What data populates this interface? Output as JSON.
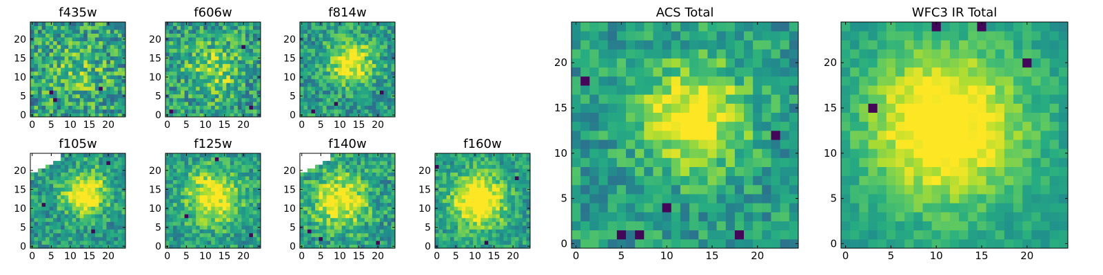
{
  "chart_data": [
    {
      "type": "heatmap",
      "title": "f435w",
      "xlim": [
        0,
        24
      ],
      "ylim": [
        0,
        24
      ],
      "xticks": [
        0,
        5,
        10,
        15,
        20
      ],
      "yticks": [
        0,
        5,
        10,
        15,
        20
      ],
      "grid": false,
      "colormap": "viridis",
      "peak": [
        12,
        11
      ],
      "spread": 6,
      "strength": 0.18,
      "noise": 0.55,
      "masked_corner": "none",
      "dark_spots": [
        [
          5,
          6
        ],
        [
          6,
          4
        ],
        [
          18,
          7
        ]
      ]
    },
    {
      "type": "heatmap",
      "title": "f606w",
      "xlim": [
        0,
        24
      ],
      "ylim": [
        0,
        24
      ],
      "xticks": [
        0,
        5,
        10,
        15,
        20
      ],
      "yticks": [
        0,
        5,
        10,
        15,
        20
      ],
      "grid": false,
      "colormap": "viridis",
      "peak": [
        12,
        12
      ],
      "spread": 5,
      "strength": 0.3,
      "noise": 0.5,
      "masked_corner": "none",
      "dark_spots": [
        [
          1,
          1
        ],
        [
          22,
          2
        ],
        [
          20,
          18
        ]
      ]
    },
    {
      "type": "heatmap",
      "title": "f814w",
      "xlim": [
        0,
        24
      ],
      "ylim": [
        0,
        24
      ],
      "xticks": [
        0,
        5,
        10,
        15,
        20
      ],
      "yticks": [
        0,
        5,
        10,
        15,
        20
      ],
      "grid": false,
      "colormap": "viridis",
      "peak": [
        13,
        14
      ],
      "spread": 4,
      "strength": 0.5,
      "noise": 0.42,
      "masked_corner": "none",
      "dark_spots": [
        [
          3,
          1
        ],
        [
          9,
          3
        ],
        [
          21,
          6
        ]
      ]
    },
    {
      "type": "heatmap",
      "title": "f105w",
      "xlim": [
        0,
        24
      ],
      "ylim": [
        0,
        24
      ],
      "xticks": [
        0,
        5,
        10,
        15,
        20
      ],
      "yticks": [
        0,
        5,
        10,
        15,
        20
      ],
      "grid": false,
      "colormap": "viridis",
      "peak": [
        14,
        14
      ],
      "spread": 4,
      "strength": 0.55,
      "noise": 0.4,
      "masked_corner": "top-left",
      "dark_spots": [
        [
          3,
          11
        ],
        [
          16,
          4
        ],
        [
          20,
          22
        ]
      ]
    },
    {
      "type": "heatmap",
      "title": "f125w",
      "xlim": [
        0,
        24
      ],
      "ylim": [
        0,
        24
      ],
      "xticks": [
        0,
        5,
        10,
        15,
        20
      ],
      "yticks": [
        0,
        5,
        10,
        15,
        20
      ],
      "grid": false,
      "colormap": "viridis",
      "peak": [
        12,
        13
      ],
      "spread": 5,
      "strength": 0.5,
      "noise": 0.38,
      "masked_corner": "none",
      "dark_spots": [
        [
          13,
          23
        ],
        [
          5,
          8
        ],
        [
          22,
          3
        ]
      ]
    },
    {
      "type": "heatmap",
      "title": "f140w",
      "xlim": [
        0,
        24
      ],
      "ylim": [
        0,
        24
      ],
      "xticks": [
        0,
        5,
        10,
        15,
        20
      ],
      "yticks": [
        0,
        5,
        10,
        15,
        20
      ],
      "grid": false,
      "colormap": "viridis",
      "peak": [
        10,
        12
      ],
      "spread": 5,
      "strength": 0.5,
      "noise": 0.42,
      "masked_corner": "top-left",
      "dark_spots": [
        [
          2,
          4
        ],
        [
          5,
          2
        ],
        [
          20,
          1
        ]
      ]
    },
    {
      "type": "heatmap",
      "title": "f160w",
      "xlim": [
        0,
        24
      ],
      "ylim": [
        0,
        24
      ],
      "xticks": [
        0,
        5,
        10,
        15,
        20
      ],
      "yticks": [
        0,
        5,
        10,
        15,
        20
      ],
      "grid": false,
      "colormap": "viridis",
      "peak": [
        11,
        12
      ],
      "spread": 5,
      "strength": 0.6,
      "noise": 0.35,
      "masked_corner": "none",
      "dark_spots": [
        [
          0,
          21
        ],
        [
          13,
          1
        ],
        [
          21,
          18
        ]
      ]
    },
    {
      "type": "heatmap",
      "title": "ACS Total",
      "xlim": [
        0,
        24
      ],
      "ylim": [
        0,
        24
      ],
      "xticks": [
        0,
        5,
        10,
        15,
        20
      ],
      "yticks": [
        0,
        5,
        10,
        15,
        20
      ],
      "grid": false,
      "colormap": "viridis",
      "peak": [
        13,
        14
      ],
      "spread": 4,
      "strength": 0.55,
      "noise": 0.35,
      "masked_corner": "none",
      "dark_spots": [
        [
          1,
          18
        ],
        [
          5,
          1
        ],
        [
          7,
          1
        ],
        [
          10,
          4
        ],
        [
          18,
          1
        ],
        [
          22,
          12
        ]
      ]
    },
    {
      "type": "heatmap",
      "title": "WFC3 IR Total",
      "xlim": [
        0,
        24
      ],
      "ylim": [
        0,
        24
      ],
      "xticks": [
        0,
        5,
        10,
        15,
        20
      ],
      "yticks": [
        0,
        5,
        10,
        15,
        20
      ],
      "grid": false,
      "colormap": "viridis",
      "peak": [
        11,
        13
      ],
      "spread": 6,
      "strength": 0.6,
      "noise": 0.2,
      "masked_corner": "none",
      "dark_spots": [
        [
          3,
          15
        ],
        [
          10,
          24
        ],
        [
          15,
          24
        ],
        [
          20,
          20
        ]
      ]
    }
  ]
}
